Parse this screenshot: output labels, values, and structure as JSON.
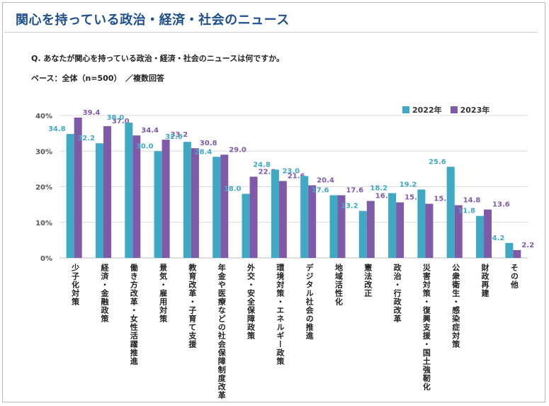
{
  "header": {
    "title": "関心を持っている政治・経済・社会のニュース",
    "question": "Q. あなたが関心を持っている政治・経済・社会のニュースは何ですか。",
    "base": "ベース：全体（n=500）　／複数回答"
  },
  "colors": {
    "series_2022": "#3fa9c3",
    "series_2023": "#7e5aa8",
    "grid": "#d9d9d9",
    "axis_text": "#555555"
  },
  "chart_data": {
    "type": "bar",
    "categories": [
      "少子化対策",
      "経済・金融政策",
      "働き方改革・女性活躍推進",
      "景気・雇用対策",
      "教育改革・子育て支援",
      "年金や医療などの社会保障制度改革",
      "外交・安全保障政策",
      "環境対策・エネルギー政策",
      "デジタル社会の推進",
      "地域活性化",
      "憲法改正",
      "政治・行政改革",
      "災害対策・復興支援・国土強靭化",
      "公衆衛生・感染症対策",
      "財政再建",
      "その他"
    ],
    "series": [
      {
        "name": "2022年",
        "values": [
          34.8,
          32.2,
          38.0,
          30.0,
          32.6,
          28.4,
          18.0,
          24.8,
          23.0,
          17.6,
          13.2,
          18.2,
          19.2,
          25.6,
          11.8,
          4.2
        ]
      },
      {
        "name": "2023年",
        "values": [
          39.4,
          37.0,
          34.4,
          33.2,
          30.8,
          29.0,
          22.8,
          21.6,
          20.4,
          17.6,
          16.0,
          15.6,
          15.2,
          14.8,
          13.6,
          2.2
        ]
      }
    ],
    "y_ticks": [
      "0%",
      "10%",
      "20%",
      "30%",
      "40%"
    ],
    "ylim": [
      0,
      40
    ],
    "legend_position": "top-right",
    "grid": true
  }
}
